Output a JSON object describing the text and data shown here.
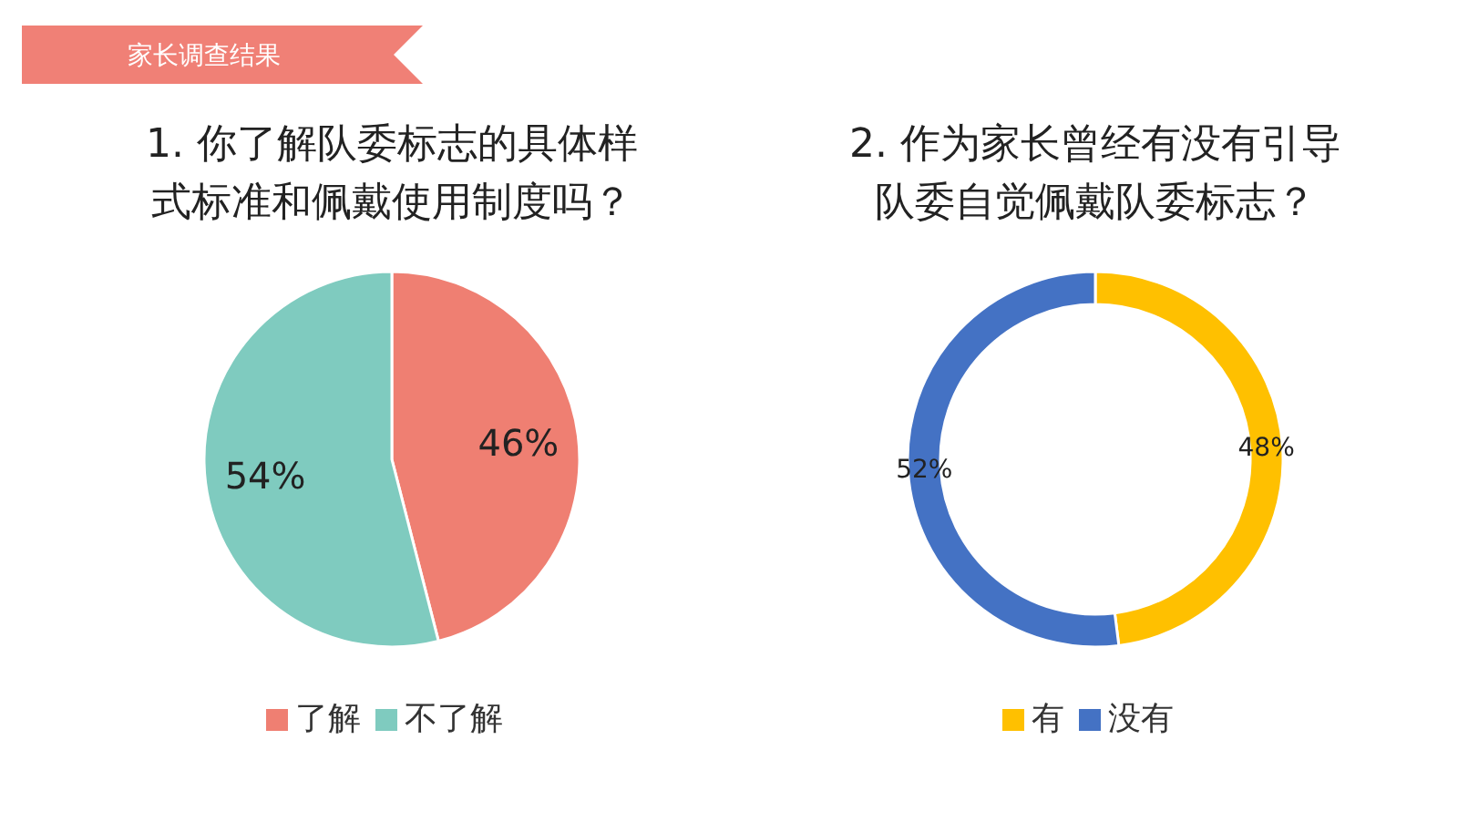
{
  "chart_data": [
    {
      "type": "other",
      "title": "家长调查结果"
    },
    {
      "type": "pie",
      "title": "1. 你了解队委标志的具体样式标准和佩戴使用制度吗？",
      "categories": [
        "了解",
        "不了解"
      ],
      "values": [
        46,
        54
      ],
      "colors": [
        "#ef7f72",
        "#7fcbbf"
      ],
      "value_labels": [
        "46%",
        "54%"
      ],
      "legend": "bottom"
    },
    {
      "type": "donut",
      "title": "2. 作为家长曾经有没有引导队委自觉佩戴队委标志？",
      "categories": [
        "有",
        "没有"
      ],
      "values": [
        48,
        52
      ],
      "colors": [
        "#ffc000",
        "#4472c4"
      ],
      "value_labels": [
        "48%",
        "52%"
      ],
      "legend": "bottom"
    }
  ]
}
